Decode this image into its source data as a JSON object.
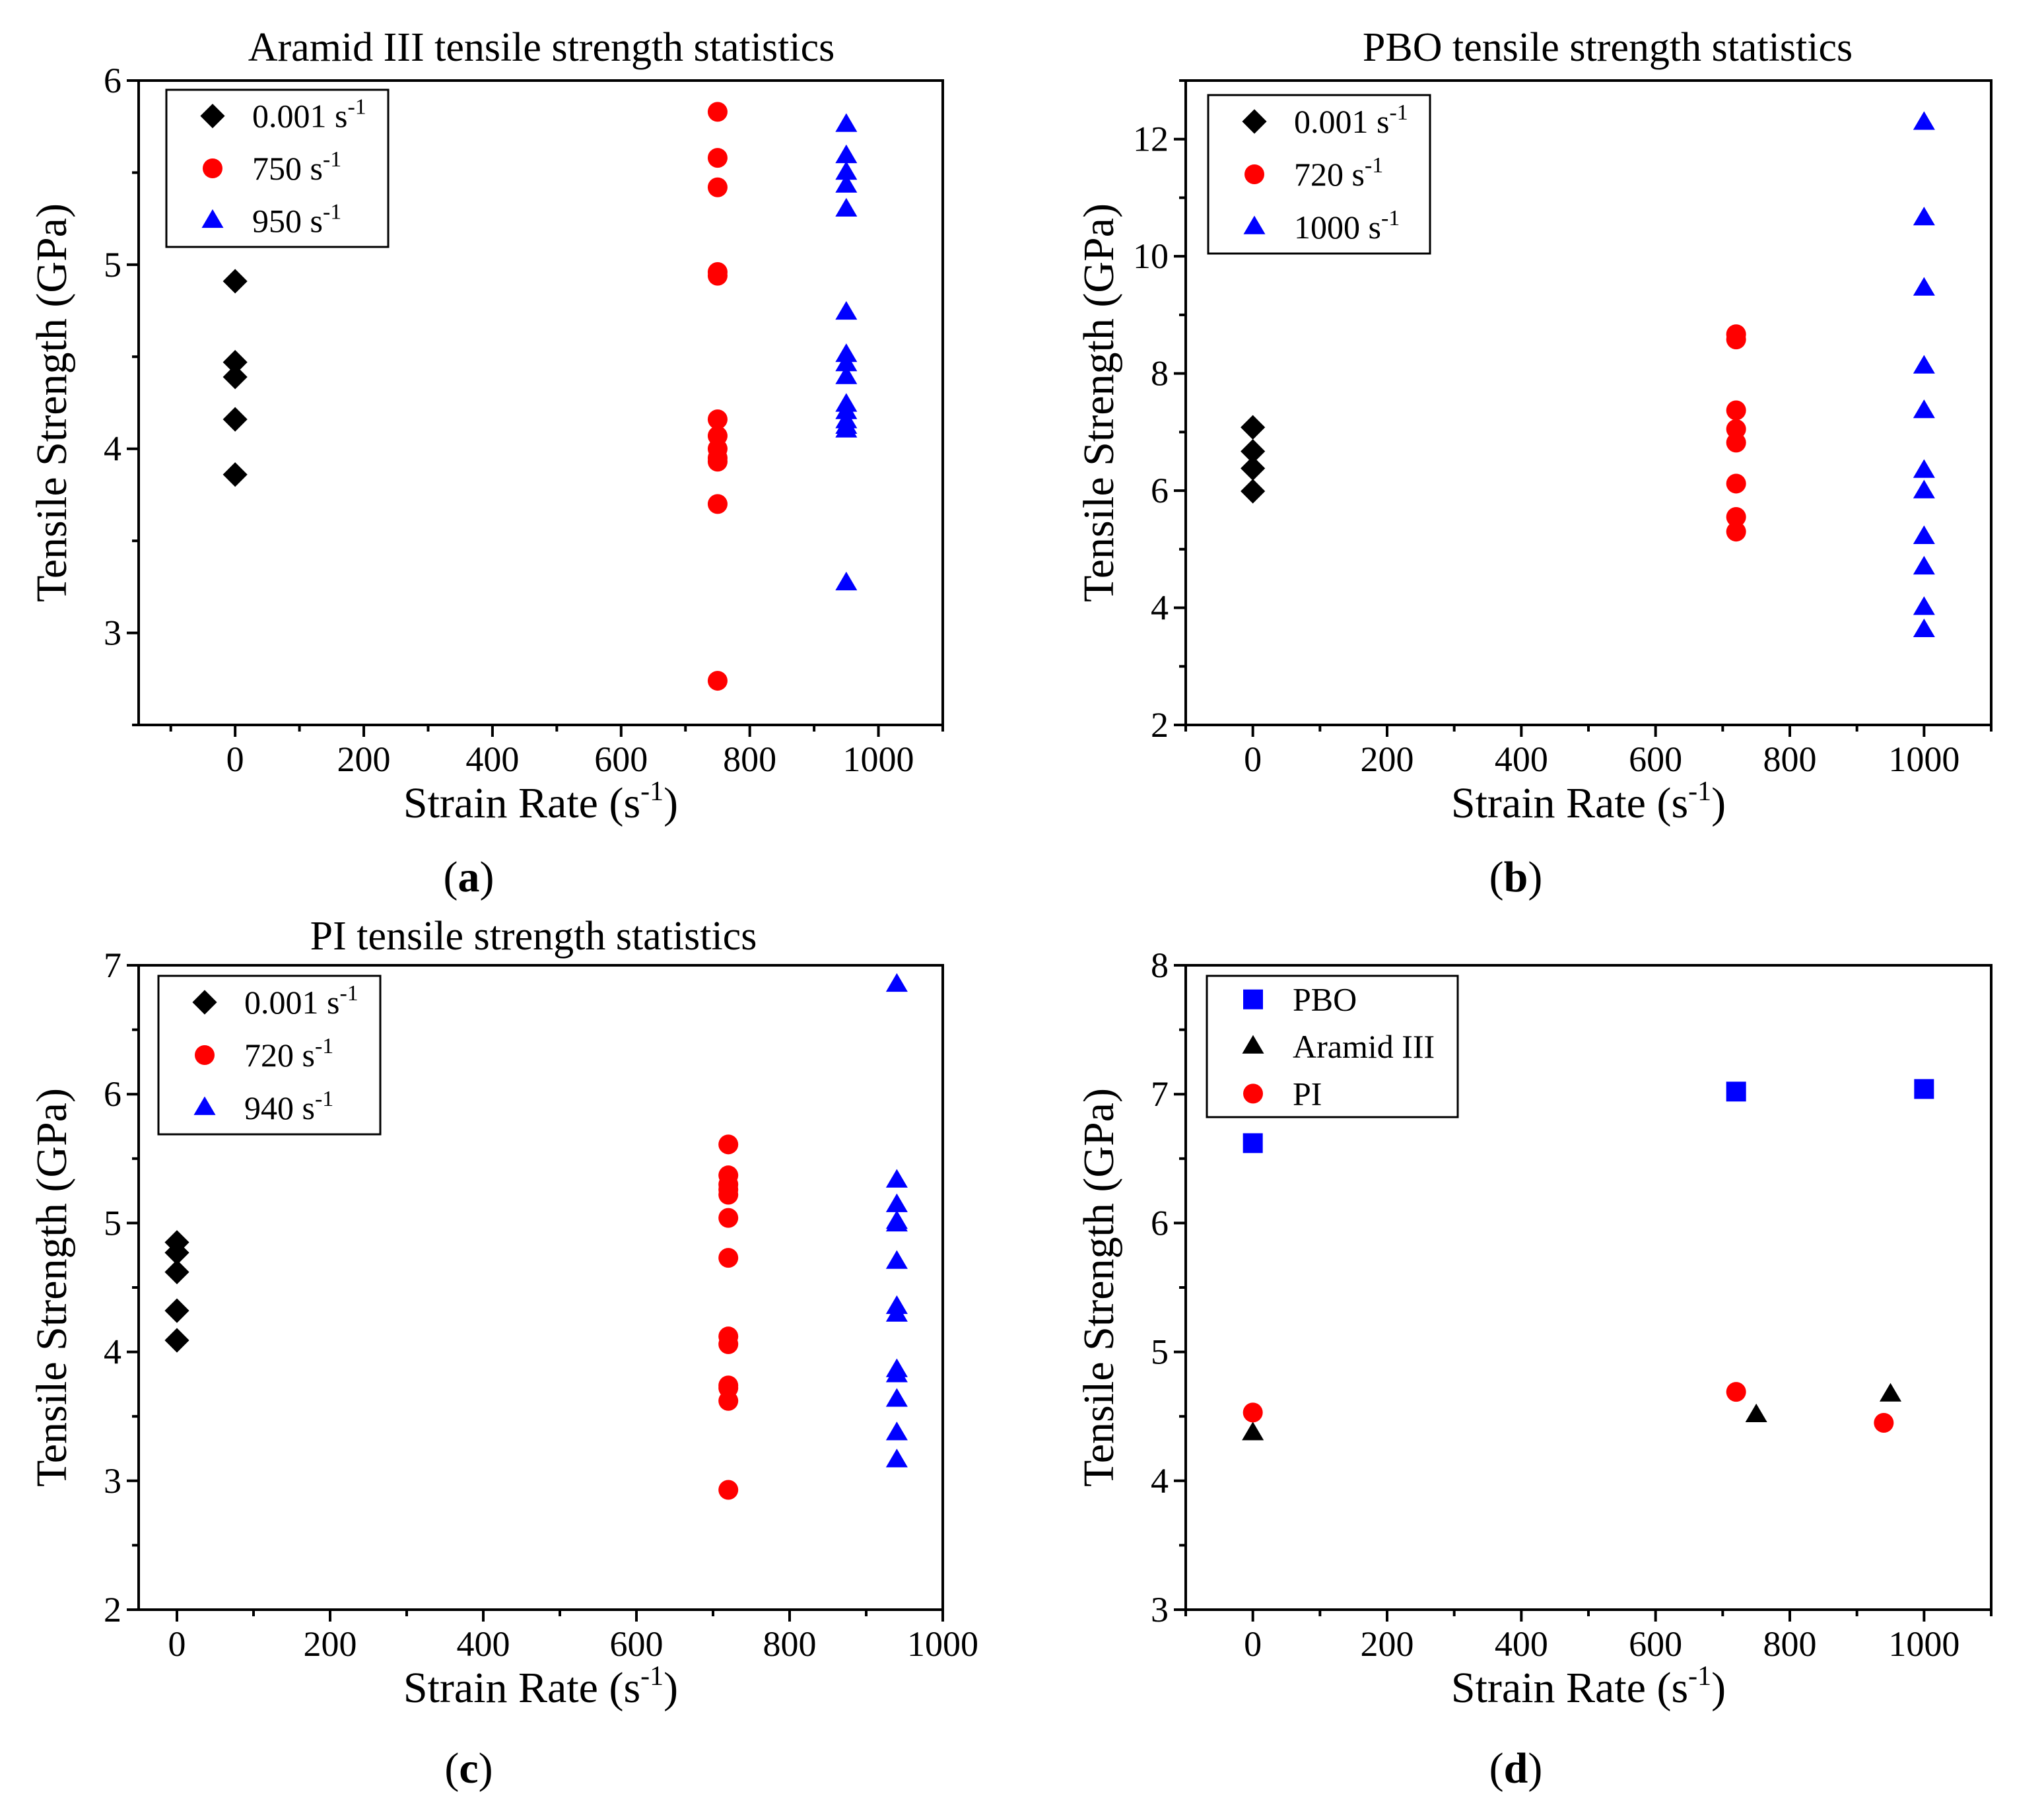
{
  "chart_data": [
    {
      "type": "scatter",
      "title": "Aramid III tensile strength statistics",
      "xlabel": "Strain Rate (s",
      "xlabel_sup": "-1",
      "xlabel_end": ")",
      "ylabel": "Tensile Strength (GPa)",
      "xlim": [
        -150,
        1100
      ],
      "ylim": [
        2.5,
        6
      ],
      "xticks": [
        0,
        200,
        400,
        600,
        800,
        1000
      ],
      "yticks": [
        3,
        4,
        5,
        6
      ],
      "caption": "a",
      "series": [
        {
          "name": "0.001 s",
          "sup": "-1",
          "marker": "diamond",
          "color": "#000000",
          "x": [
            0,
            0,
            0,
            0,
            0
          ],
          "y": [
            4.91,
            4.47,
            4.39,
            4.16,
            3.86
          ]
        },
        {
          "name": "750 s",
          "sup": "-1",
          "marker": "circle",
          "color": "#ff0000",
          "x": [
            750,
            750,
            750,
            750,
            750,
            750,
            750,
            750,
            750,
            750,
            750,
            750
          ],
          "y": [
            5.83,
            5.58,
            5.42,
            4.96,
            4.94,
            4.16,
            4.07,
            4.0,
            3.95,
            3.93,
            3.7,
            2.74
          ]
        },
        {
          "name": "950 s",
          "sup": "-1",
          "marker": "triangle",
          "color": "#0000ff",
          "x": [
            950,
            950,
            950,
            950,
            950,
            950,
            950,
            950,
            950,
            950,
            950,
            950,
            950,
            950,
            950
          ],
          "y": [
            5.76,
            5.59,
            5.5,
            5.43,
            5.3,
            4.74,
            4.51,
            4.46,
            4.39,
            4.24,
            4.2,
            4.15,
            4.12,
            4.1,
            3.27
          ]
        }
      ]
    },
    {
      "type": "scatter",
      "title": "PBO tensile strength statistics",
      "xlabel": "Strain Rate (s",
      "xlabel_sup": "-1",
      "xlabel_end": ")",
      "ylabel": "Tensile Strength (GPa)",
      "xlim": [
        -100,
        1100
      ],
      "ylim": [
        2,
        13
      ],
      "xticks": [
        0,
        200,
        400,
        600,
        800,
        1000
      ],
      "yticks": [
        2,
        4,
        6,
        8,
        10,
        12
      ],
      "caption": "b",
      "series": [
        {
          "name": "0.001 s",
          "sup": "-1",
          "marker": "diamond",
          "color": "#000000",
          "x": [
            0,
            0,
            0,
            0
          ],
          "y": [
            7.08,
            6.67,
            6.38,
            5.99
          ]
        },
        {
          "name": "720 s",
          "sup": "-1",
          "marker": "circle",
          "color": "#ff0000",
          "x": [
            720,
            720,
            720,
            720,
            720,
            720,
            720,
            720
          ],
          "y": [
            8.67,
            8.58,
            7.37,
            7.05,
            6.82,
            6.12,
            5.55,
            5.3
          ]
        },
        {
          "name": "1000 s",
          "sup": "-1",
          "marker": "triangle",
          "color": "#0000ff",
          "x": [
            1000,
            1000,
            1000,
            1000,
            1000,
            1000,
            1000,
            1000,
            1000,
            1000,
            1000
          ],
          "y": [
            12.28,
            10.65,
            9.45,
            8.12,
            7.36,
            6.34,
            5.99,
            5.21,
            4.69,
            4.0,
            3.62
          ]
        }
      ]
    },
    {
      "type": "scatter",
      "title": "PI tensile strength statistics",
      "xlabel": "Strain Rate (s",
      "xlabel_sup": "-1",
      "xlabel_end": ")",
      "ylabel": "Tensile Strength (GPa)",
      "xlim": [
        -50,
        1000
      ],
      "ylim": [
        2,
        7
      ],
      "xticks": [
        0,
        200,
        400,
        600,
        800,
        1000
      ],
      "yticks": [
        2,
        3,
        4,
        5,
        6,
        7
      ],
      "caption": "c",
      "series": [
        {
          "name": "0.001 s",
          "sup": "-1",
          "marker": "diamond",
          "color": "#000000",
          "x": [
            0,
            0,
            0,
            0,
            0
          ],
          "y": [
            4.85,
            4.77,
            4.62,
            4.32,
            4.09
          ]
        },
        {
          "name": "720 s",
          "sup": "-1",
          "marker": "circle",
          "color": "#ff0000",
          "x": [
            720,
            720,
            720,
            720,
            720,
            720,
            720,
            720,
            720,
            720,
            720,
            720,
            720
          ],
          "y": [
            5.61,
            5.37,
            5.3,
            5.22,
            5.04,
            4.73,
            4.12,
            4.06,
            3.74,
            3.72,
            3.62,
            2.93,
            5.26
          ]
        },
        {
          "name": "940 s",
          "sup": "-1",
          "marker": "triangle",
          "color": "#0000ff",
          "x": [
            940,
            940,
            940,
            940,
            940,
            940,
            940,
            940,
            940,
            940,
            940,
            940,
            940
          ],
          "y": [
            6.85,
            5.33,
            5.14,
            4.99,
            4.7,
            4.35,
            4.29,
            3.86,
            3.82,
            3.63,
            3.37,
            3.16,
            5.01
          ]
        }
      ]
    },
    {
      "type": "scatter",
      "title": "",
      "xlabel": "Strain Rate (s",
      "xlabel_sup": "-1",
      "xlabel_end": ")",
      "ylabel": "Tensile Strength (GPa)",
      "xlim": [
        -100,
        1100
      ],
      "ylim": [
        3,
        8
      ],
      "xticks": [
        0,
        200,
        400,
        600,
        800,
        1000
      ],
      "yticks": [
        3,
        4,
        5,
        6,
        7,
        8
      ],
      "caption": "d",
      "series": [
        {
          "name": "PBO",
          "sup": "",
          "marker": "square",
          "color": "#0000ff",
          "x": [
            0,
            720,
            1000
          ],
          "y": [
            6.62,
            7.02,
            7.04
          ]
        },
        {
          "name": "Aramid III",
          "sup": "",
          "marker": "triangle",
          "color": "#000000",
          "x": [
            0,
            750,
            950
          ],
          "y": [
            4.37,
            4.51,
            4.67
          ]
        },
        {
          "name": "PI",
          "sup": "",
          "marker": "circle",
          "color": "#ff0000",
          "x": [
            0,
            720,
            940
          ],
          "y": [
            4.53,
            4.69,
            4.45
          ]
        }
      ]
    }
  ]
}
